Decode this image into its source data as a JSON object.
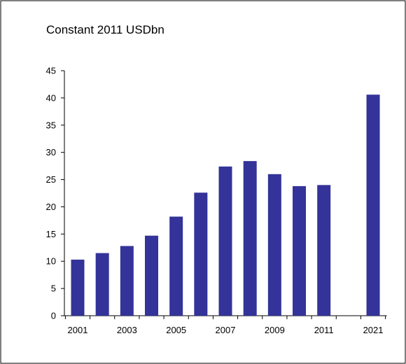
{
  "chart_data": {
    "type": "bar",
    "title": "Constant 2011 USDbn",
    "xlabel": "",
    "ylabel": "",
    "categories": [
      "2001",
      "2002",
      "2003",
      "2004",
      "2005",
      "2006",
      "2007",
      "2008",
      "2009",
      "2010",
      "2011",
      "",
      "2021"
    ],
    "values": [
      10.3,
      11.5,
      12.8,
      14.7,
      18.2,
      22.6,
      27.4,
      28.4,
      26.0,
      23.8,
      24.0,
      null,
      40.6
    ],
    "x_tick_labels": [
      "2001",
      "2003",
      "2005",
      "2007",
      "2009",
      "2011",
      "2021"
    ],
    "y_ticks": [
      0,
      5,
      10,
      15,
      20,
      25,
      30,
      35,
      40,
      45
    ],
    "ylim": [
      0,
      45
    ],
    "grid": false,
    "legend": "none",
    "bar_color": "#333399"
  }
}
